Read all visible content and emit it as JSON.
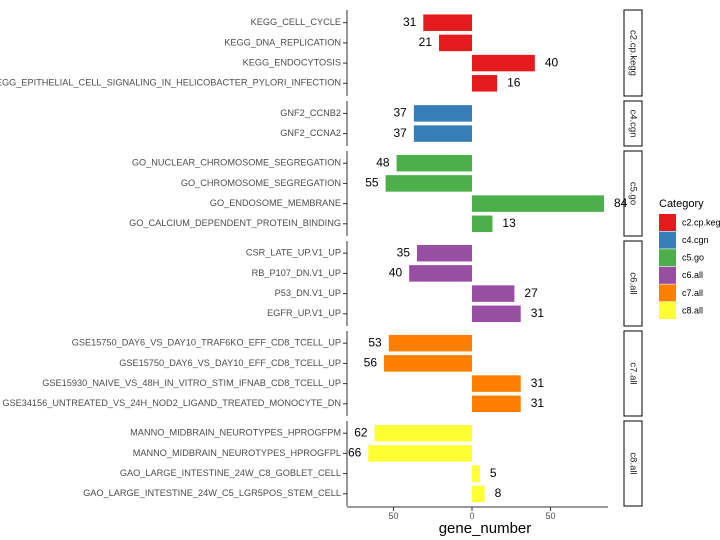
{
  "chart_data": {
    "type": "bar",
    "orientation": "horizontal",
    "xlabel": "gene_number",
    "ylabel": "",
    "x_ticks": [
      "50",
      "0",
      "50"
    ],
    "legend_title": "Category",
    "legend_position": "right",
    "legend": [
      {
        "name": "c2.cp.keg",
        "color": "#E41A1C"
      },
      {
        "name": "c4.cgn",
        "color": "#377EB8"
      },
      {
        "name": "c5.go",
        "color": "#4DAF4A"
      },
      {
        "name": "c6.all",
        "color": "#984EA3"
      },
      {
        "name": "c7.all",
        "color": "#FF7F00"
      },
      {
        "name": "c8.all",
        "color": "#FFFF33"
      }
    ],
    "panels": [
      {
        "strip": "c2.cp.kegg",
        "color": "#E41A1C",
        "rows": [
          {
            "label": "KEGG_CELL_CYCLE",
            "value": -31,
            "display": "31"
          },
          {
            "label": "KEGG_DNA_REPLICATION",
            "value": -21,
            "display": "21"
          },
          {
            "label": "KEGG_ENDOCYTOSIS",
            "value": 40,
            "display": "40"
          },
          {
            "label": "KEGG_EPITHELIAL_CELL_SIGNALING_IN_HELICOBACTER_PYLORI_INFECTION",
            "value": 16,
            "display": "16"
          }
        ]
      },
      {
        "strip": "c4.cgn",
        "color": "#377EB8",
        "rows": [
          {
            "label": "GNF2_CCNB2",
            "value": -37,
            "display": "37"
          },
          {
            "label": "GNF2_CCNA2",
            "value": -37,
            "display": "37"
          }
        ]
      },
      {
        "strip": "c5.go",
        "color": "#4DAF4A",
        "rows": [
          {
            "label": "GO_NUCLEAR_CHROMOSOME_SEGREGATION",
            "value": -48,
            "display": "48"
          },
          {
            "label": "GO_CHROMOSOME_SEGREGATION",
            "value": -55,
            "display": "55"
          },
          {
            "label": "GO_ENDOSOME_MEMBRANE",
            "value": 84,
            "display": "84"
          },
          {
            "label": "GO_CALCIUM_DEPENDENT_PROTEIN_BINDING",
            "value": 13,
            "display": "13"
          }
        ]
      },
      {
        "strip": "c6.all",
        "color": "#984EA3",
        "rows": [
          {
            "label": "CSR_LATE_UP.V1_UP",
            "value": -35,
            "display": "35"
          },
          {
            "label": "RB_P107_DN.V1_UP",
            "value": -40,
            "display": "40"
          },
          {
            "label": "P53_DN.V1_UP",
            "value": 27,
            "display": "27"
          },
          {
            "label": "EGFR_UP.V1_UP",
            "value": 31,
            "display": "31"
          }
        ]
      },
      {
        "strip": "c7.all",
        "color": "#FF7F00",
        "rows": [
          {
            "label": "GSE15750_DAY6_VS_DAY10_TRAF6KO_EFF_CD8_TCELL_UP",
            "value": -53,
            "display": "53"
          },
          {
            "label": "GSE15750_DAY6_VS_DAY10_EFF_CD8_TCELL_UP",
            "value": -56,
            "display": "56"
          },
          {
            "label": "GSE15930_NAIVE_VS_48H_IN_VITRO_STIM_IFNAB_CD8_TCELL_UP",
            "value": 31,
            "display": "31"
          },
          {
            "label": "GSE34156_UNTREATED_VS_24H_NOD2_LIGAND_TREATED_MONOCYTE_DN",
            "value": 31,
            "display": "31"
          }
        ]
      },
      {
        "strip": "c8.all",
        "color": "#FFFF33",
        "rows": [
          {
            "label": "MANNO_MIDBRAIN_NEUROTYPES_HPROGFPM",
            "value": -62,
            "display": "62"
          },
          {
            "label": "MANNO_MIDBRAIN_NEUROTYPES_HPROGFPL",
            "value": -66,
            "display": "66"
          },
          {
            "label": "GAO_LARGE_INTESTINE_24W_C8_GOBLET_CELL",
            "value": 5,
            "display": "5"
          },
          {
            "label": "GAO_LARGE_INTESTINE_24W_C5_LGR5POS_STEM_CELL",
            "value": 8,
            "display": "8"
          }
        ]
      }
    ]
  }
}
